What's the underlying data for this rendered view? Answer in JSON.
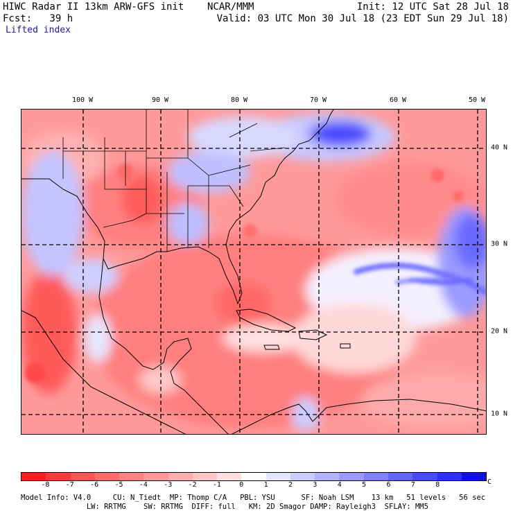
{
  "header": {
    "line1_left": "HIWC Radar II 13km ARW-GFS init    NCAR/MMM",
    "line1_right": "Init: 12 UTC Sat 28 Jul 18",
    "line2_left": "Fcst:   39 h",
    "line2_right": "Valid: 03 UTC Mon 30 Jul 18 (23 EDT Sun 29 Jul 18)",
    "field": "Lifted index"
  },
  "map": {
    "lon_labels": [
      "100 W",
      "90 W",
      "80 W",
      "70 W",
      "60 W",
      "50 W"
    ],
    "lat_labels": [
      "40 N",
      "30 N",
      "20 N",
      "10 N"
    ]
  },
  "colorbar": {
    "ticks": [
      "-8",
      "-7",
      "-6",
      "-5",
      "-4",
      "-3",
      "-2",
      "-1",
      "0",
      "1",
      "2",
      "3",
      "4",
      "5",
      "6",
      "7",
      "8"
    ],
    "unit": "°C",
    "colors": [
      "#ff1f1f",
      "#ff3c3c",
      "#ff5555",
      "#ff6c6c",
      "#ff8282",
      "#ff9898",
      "#ffaeae",
      "#ffc6c6",
      "#ffe0e0",
      "#ffffff",
      "#e6e6ff",
      "#ccccff",
      "#b3b3ff",
      "#9999ff",
      "#7f7fff",
      "#6464ff",
      "#4a4aff",
      "#2f2fff",
      "#0f0fe8"
    ]
  },
  "footer": {
    "line1": "Model Info: V4.0     CU: N_Tiedt  MP: Thomp C/A   PBL: YSU      SF: Noah LSM    13 km   51 levels   56 sec",
    "line2": "               LW: RRTMG    SW: RRTMG  DIFF: full   KM: 2D Smagor DAMP: Rayleigh3  SFLAY: MM5"
  }
}
